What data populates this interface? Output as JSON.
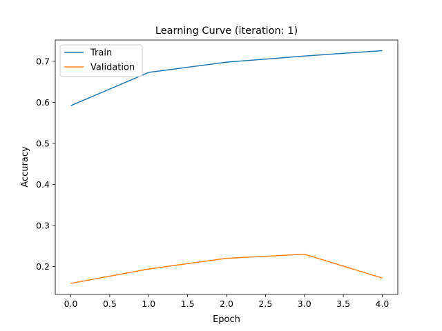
{
  "chart_data": {
    "type": "line",
    "title": "Learning Curve (iteration: 1)",
    "xlabel": "Epoch",
    "ylabel": "Accuracy",
    "x": [
      0,
      1,
      2,
      3,
      4
    ],
    "xlim": [
      -0.2,
      4.2
    ],
    "ylim": [
      0.132,
      0.752
    ],
    "xticks": [
      0.0,
      0.5,
      1.0,
      1.5,
      2.0,
      2.5,
      3.0,
      3.5,
      4.0
    ],
    "xtick_labels": [
      "0.0",
      "0.5",
      "1.0",
      "1.5",
      "2.0",
      "2.5",
      "3.0",
      "3.5",
      "4.0"
    ],
    "yticks": [
      0.2,
      0.3,
      0.4,
      0.5,
      0.6,
      0.7
    ],
    "ytick_labels": [
      "0.2",
      "0.3",
      "0.4",
      "0.5",
      "0.6",
      "0.7"
    ],
    "grid": false,
    "legend_position": "top-left",
    "series": [
      {
        "name": "Train",
        "color": "#1f77b4",
        "values": [
          0.592,
          0.673,
          0.698,
          0.713,
          0.726
        ]
      },
      {
        "name": "Validation",
        "color": "#ff7f0e",
        "values": [
          0.159,
          0.194,
          0.22,
          0.23,
          0.172
        ]
      }
    ]
  }
}
